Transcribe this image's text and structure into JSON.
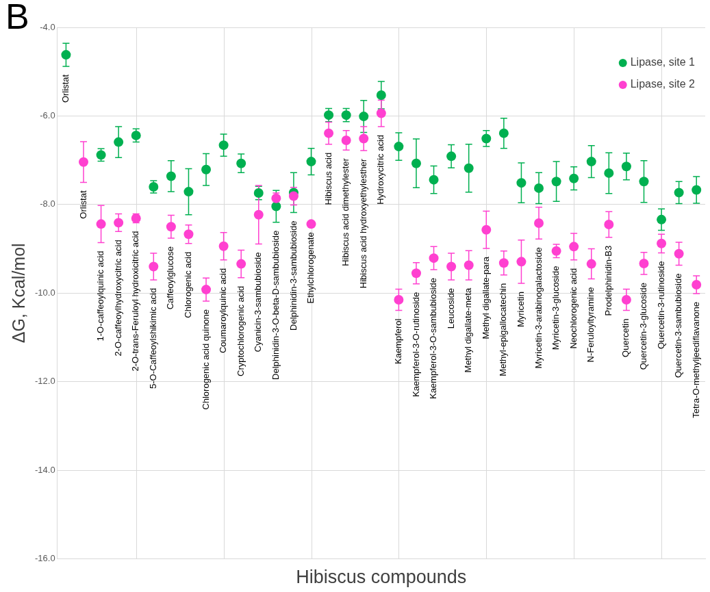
{
  "chart_data": {
    "type": "scatter",
    "title": "B",
    "xlabel": "Hibiscus compounds",
    "ylabel": "ΔG, Kcal/mol",
    "categories": [
      "Orlistat",
      "Orlistat",
      "1-O-caffeoylquinic acid",
      "2-O-caffeoylhydroxycitric acid",
      "2-O-trans-Feruloyl hydroxicitric acid",
      "5-O-Caffeoylshikimic acid",
      "Caffeoylglucose",
      "Chlorogenic acid",
      "Chlorogenic acid quinone",
      "Coumaroylquinic acid",
      "Cryptochlorogenic acid",
      "Cyanicin-3-sambubioside",
      "Delphinidin-3-O-beta-D-sambubioside",
      "Delphinidin-3-sambubioside",
      "Ethylchlorogenate",
      "Hibiscus acid",
      "Hibiscus acid dimethylester",
      "Hibiscus acid hydroxyethylesther",
      "Hydroxycitric acid",
      "Kaempferol",
      "Kaempferol-3-O-rutinoside",
      "Kaempferol-3-O-sambubioside",
      "Leucoside",
      "Methyl digallate-meta",
      "Methyl digallate-para",
      "Methyl-epigallocatechin",
      "Myricetin",
      "Myricetin-3-arabinogalactoside",
      "Myricetin-3-glucoside",
      "Neochlorogenic acid",
      "N-Feruloyltyramine",
      "Prodelphinidin-B3",
      "Quercetin",
      "Quercetin-3-glucoside",
      "Quercetin-3-rutinoside",
      "Quercetin-3-sambubioside",
      "Tetra-O-methyljeediflavanone"
    ],
    "ylim": [
      -16,
      -4
    ],
    "yticks": [
      {
        "value": -4,
        "label": "-4.0"
      },
      {
        "value": -6,
        "label": "-6.0"
      },
      {
        "value": -8,
        "label": "-8.0"
      },
      {
        "value": -10,
        "label": "-10.0"
      },
      {
        "value": -12,
        "label": "-12.0"
      },
      {
        "value": -14,
        "label": "-14.0"
      },
      {
        "value": -16,
        "label": "-16.0"
      }
    ],
    "grid": true,
    "legend": "top right",
    "marker": "circle",
    "series": [
      {
        "name": "Lipase, site 1",
        "color": "#00b050",
        "values": [
          -4.62,
          null,
          -6.88,
          -6.59,
          -6.44,
          -7.6,
          -7.36,
          -7.71,
          -7.21,
          -6.66,
          -7.07,
          -7.74,
          -8.04,
          -7.73,
          -7.03,
          -5.98,
          -5.98,
          -6.01,
          -5.53,
          -6.69,
          -7.07,
          -7.44,
          -6.91,
          -7.18,
          -6.51,
          -6.39,
          -7.51,
          -7.63,
          -7.48,
          -7.41,
          -7.03,
          -7.29,
          -7.14,
          -7.48,
          -8.34,
          -7.73,
          -7.67
        ],
        "errors": [
          0.26,
          null,
          0.14,
          0.35,
          0.15,
          0.14,
          0.35,
          0.52,
          0.36,
          0.25,
          0.21,
          0.15,
          0.36,
          0.45,
          0.3,
          0.15,
          0.15,
          0.36,
          0.31,
          0.31,
          0.55,
          0.31,
          0.26,
          0.54,
          0.18,
          0.34,
          0.45,
          0.35,
          0.45,
          0.26,
          0.36,
          0.46,
          0.3,
          0.47,
          0.24,
          0.25,
          0.3
        ]
      },
      {
        "name": "Lipase, site 2",
        "color": "#ff40d0",
        "values": [
          null,
          -7.04,
          -8.44,
          -8.41,
          -8.31,
          -9.4,
          -8.5,
          -8.67,
          -9.92,
          -8.94,
          -9.34,
          -8.23,
          -7.86,
          -7.81,
          -8.44,
          -6.39,
          -6.55,
          -6.51,
          -5.94,
          -10.15,
          -9.55,
          -9.21,
          -9.4,
          -9.37,
          -8.57,
          -9.32,
          -9.29,
          -8.42,
          -9.05,
          -8.95,
          -9.34,
          -8.45,
          -10.15,
          -9.33,
          -8.88,
          -9.11,
          -9.81
        ],
        "errors": [
          null,
          0.46,
          0.42,
          0.2,
          0.1,
          0.3,
          0.26,
          0.21,
          0.26,
          0.31,
          0.31,
          0.66,
          0.12,
          0.2,
          null,
          0.25,
          0.22,
          0.27,
          0.3,
          0.24,
          0.24,
          0.26,
          0.3,
          0.33,
          0.42,
          0.27,
          0.49,
          0.36,
          0.15,
          0.3,
          0.34,
          0.29,
          0.24,
          0.25,
          0.21,
          0.26,
          0.2
        ]
      }
    ]
  }
}
